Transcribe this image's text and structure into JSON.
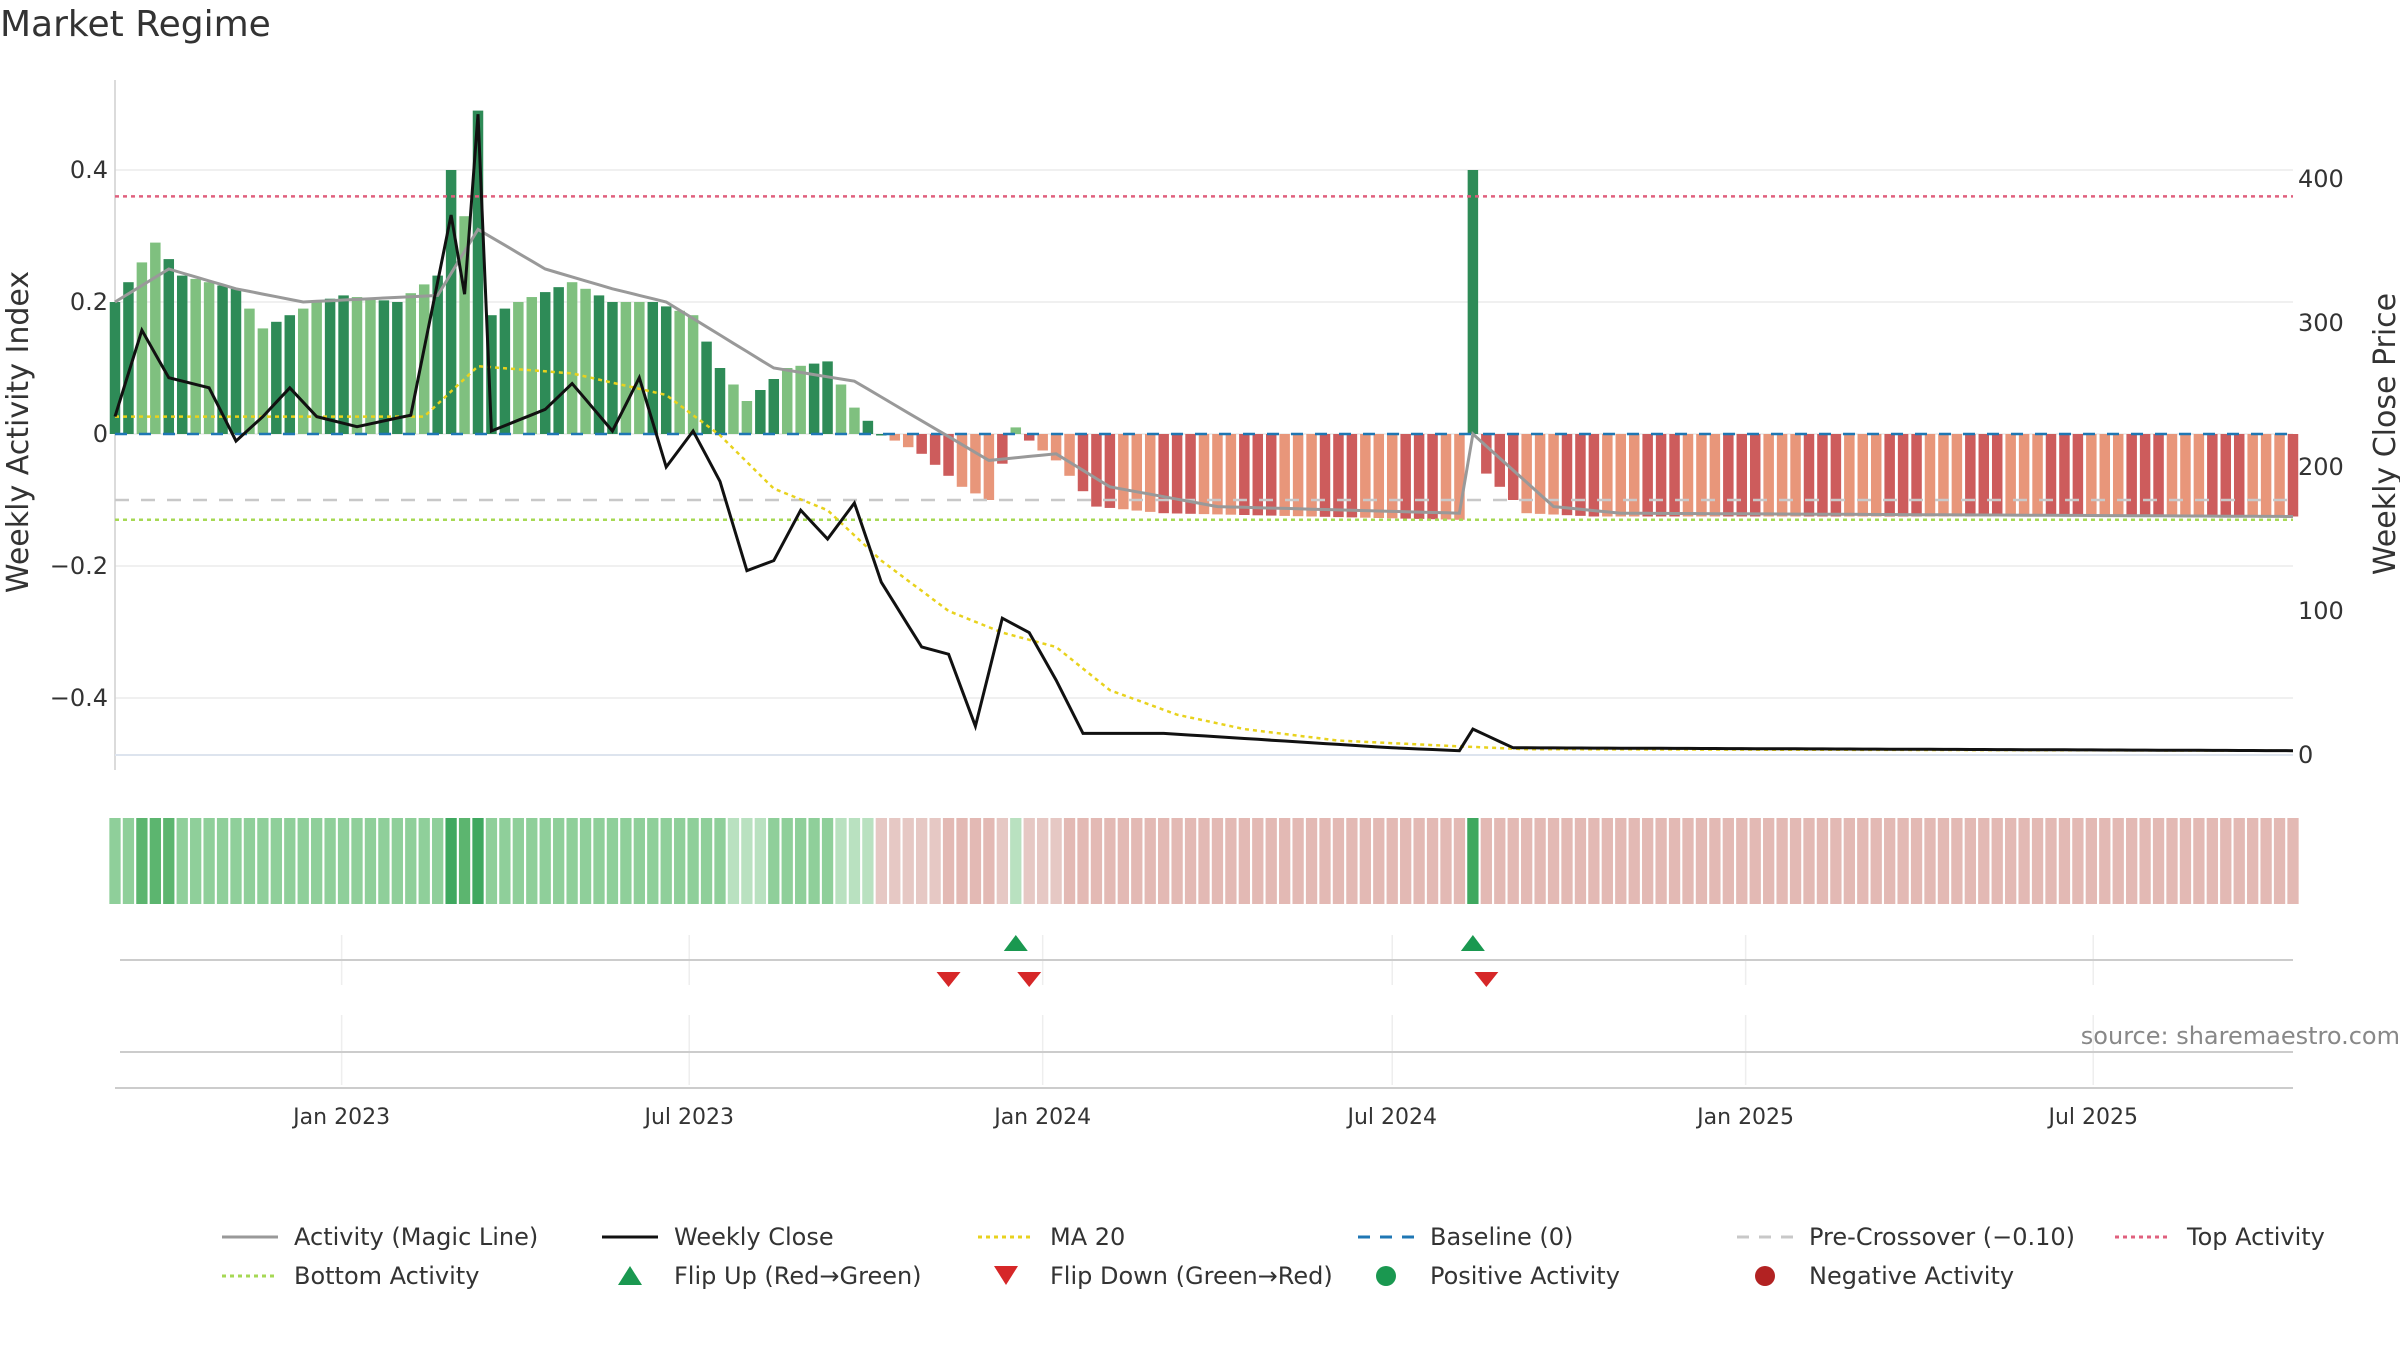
{
  "title": "Market Regime",
  "source": "source: sharemaestro.com",
  "colors": {
    "green_dark": "#2e8b57",
    "green_light": "#7fc07f",
    "red_dark": "#cd5c5c",
    "red_light": "#e8967a",
    "magic_line": "#999999",
    "close_line": "#111111",
    "ma20": "#e8d21d",
    "baseline": "#1f77b4",
    "pre_crossover": "#c8c8c8",
    "top_activity": "#e0607e",
    "bottom_activity": "#a6d854",
    "flip_up": "#1a9850",
    "flip_down": "#d62728",
    "positive_dot": "#1a9850",
    "negative_dot": "#b22222"
  },
  "chart_data": {
    "type": "bar",
    "title": "Market Regime",
    "ylabel_left": "Weekly Activity Index",
    "ylabel_right": "Weekly Close Price",
    "ylim_left": [
      -0.5,
      0.54
    ],
    "ylim_right": [
      0,
      480
    ],
    "yticks_left": [
      {
        "value": 0.4,
        "label": "0.4"
      },
      {
        "value": 0.2,
        "label": "0.2"
      },
      {
        "value": 0,
        "label": "0"
      },
      {
        "value": -0.2,
        "label": "−0.2"
      },
      {
        "value": -0.4,
        "label": "−0.4"
      }
    ],
    "yticks_right": [
      {
        "value": 400,
        "label": "400"
      },
      {
        "value": 300,
        "label": "300"
      },
      {
        "value": 200,
        "label": "200"
      },
      {
        "value": 100,
        "label": "100"
      },
      {
        "value": 0,
        "label": "0"
      }
    ],
    "x_start": "2022-09-05",
    "x_end": "2025-10-13",
    "xticks": [
      {
        "date": "2023-01-01",
        "label": "Jan 2023"
      },
      {
        "date": "2023-07-01",
        "label": "Jul 2023"
      },
      {
        "date": "2024-01-01",
        "label": "Jan 2024"
      },
      {
        "date": "2024-07-01",
        "label": "Jul 2024"
      },
      {
        "date": "2025-01-01",
        "label": "Jan 2025"
      },
      {
        "date": "2025-07-01",
        "label": "Jul 2025"
      }
    ],
    "reference_lines": {
      "top_activity": 0.36,
      "bottom_activity": -0.13,
      "pre_crossover": -0.1,
      "baseline": 0
    },
    "activity_keys": [
      [
        "2022-09-05",
        0.2
      ],
      [
        "2022-09-26",
        0.29
      ],
      [
        "2022-10-10",
        0.24
      ],
      [
        "2022-11-07",
        0.22
      ],
      [
        "2022-11-21",
        0.16
      ],
      [
        "2022-12-19",
        0.2
      ],
      [
        "2023-01-02",
        0.21
      ],
      [
        "2023-01-30",
        0.2
      ],
      [
        "2023-02-20",
        0.24
      ],
      [
        "2023-02-27",
        0.4
      ],
      [
        "2023-03-06",
        0.33
      ],
      [
        "2023-03-13",
        0.49
      ],
      [
        "2023-03-20",
        0.18
      ],
      [
        "2023-04-03",
        0.2
      ],
      [
        "2023-05-01",
        0.23
      ],
      [
        "2023-05-22",
        0.2
      ],
      [
        "2023-06-12",
        0.2
      ],
      [
        "2023-07-03",
        0.18
      ],
      [
        "2023-07-17",
        0.1
      ],
      [
        "2023-07-31",
        0.05
      ],
      [
        "2023-08-21",
        0.1
      ],
      [
        "2023-09-11",
        0.11
      ],
      [
        "2023-09-25",
        0.04
      ],
      [
        "2023-10-09",
        0.0
      ],
      [
        "2023-10-30",
        -0.03
      ],
      [
        "2023-11-20",
        -0.08
      ],
      [
        "2023-12-04",
        -0.1
      ],
      [
        "2023-12-18",
        0.01
      ],
      [
        "2023-12-25",
        -0.01
      ],
      [
        "2024-01-08",
        -0.04
      ],
      [
        "2024-01-29",
        -0.11
      ],
      [
        "2024-03-04",
        -0.12
      ],
      [
        "2024-08-05",
        -0.13
      ],
      [
        "2024-08-12",
        0.4
      ],
      [
        "2024-08-19",
        -0.06
      ],
      [
        "2024-09-09",
        -0.12
      ],
      [
        "2024-10-14",
        -0.125
      ],
      [
        "2025-10-13",
        -0.125
      ]
    ],
    "magic_keys": [
      [
        "2022-09-05",
        0.2
      ],
      [
        "2022-10-03",
        0.25
      ],
      [
        "2022-11-07",
        0.22
      ],
      [
        "2022-12-12",
        0.2
      ],
      [
        "2023-02-20",
        0.21
      ],
      [
        "2023-03-13",
        0.31
      ],
      [
        "2023-04-17",
        0.25
      ],
      [
        "2023-05-22",
        0.22
      ],
      [
        "2023-06-19",
        0.2
      ],
      [
        "2023-07-17",
        0.15
      ],
      [
        "2023-08-14",
        0.1
      ],
      [
        "2023-09-25",
        0.08
      ],
      [
        "2023-10-30",
        0.02
      ],
      [
        "2023-12-04",
        -0.04
      ],
      [
        "2024-01-08",
        -0.03
      ],
      [
        "2024-02-05",
        -0.08
      ],
      [
        "2024-04-01",
        -0.11
      ],
      [
        "2024-08-05",
        -0.12
      ],
      [
        "2024-08-12",
        0.0
      ],
      [
        "2024-09-23",
        -0.11
      ],
      [
        "2024-10-28",
        -0.12
      ],
      [
        "2025-10-13",
        -0.125
      ]
    ],
    "close_keys": [
      [
        "2022-09-05",
        235
      ],
      [
        "2022-09-19",
        295
      ],
      [
        "2022-10-03",
        262
      ],
      [
        "2022-10-24",
        255
      ],
      [
        "2022-11-07",
        218
      ],
      [
        "2022-11-21",
        235
      ],
      [
        "2022-12-05",
        255
      ],
      [
        "2022-12-19",
        235
      ],
      [
        "2023-01-09",
        228
      ],
      [
        "2023-02-06",
        236
      ],
      [
        "2023-02-27",
        375
      ],
      [
        "2023-03-06",
        320
      ],
      [
        "2023-03-13",
        445
      ],
      [
        "2023-03-20",
        225
      ],
      [
        "2023-04-17",
        240
      ],
      [
        "2023-05-01",
        258
      ],
      [
        "2023-05-22",
        225
      ],
      [
        "2023-06-05",
        262
      ],
      [
        "2023-06-19",
        200
      ],
      [
        "2023-07-03",
        225
      ],
      [
        "2023-07-17",
        190
      ],
      [
        "2023-07-31",
        128
      ],
      [
        "2023-08-14",
        135
      ],
      [
        "2023-08-28",
        170
      ],
      [
        "2023-09-11",
        150
      ],
      [
        "2023-09-25",
        175
      ],
      [
        "2023-10-09",
        120
      ],
      [
        "2023-10-30",
        75
      ],
      [
        "2023-11-13",
        70
      ],
      [
        "2023-11-27",
        20
      ],
      [
        "2023-12-11",
        95
      ],
      [
        "2023-12-25",
        85
      ],
      [
        "2024-01-08",
        52
      ],
      [
        "2024-01-22",
        15
      ],
      [
        "2024-03-04",
        15
      ],
      [
        "2024-07-01",
        5
      ],
      [
        "2024-08-05",
        3
      ],
      [
        "2024-08-12",
        18
      ],
      [
        "2024-09-02",
        5
      ],
      [
        "2025-10-13",
        3
      ]
    ],
    "ma20_keys": [
      [
        "2022-09-05",
        235
      ],
      [
        "2023-02-13",
        235
      ],
      [
        "2023-03-13",
        270
      ],
      [
        "2023-05-01",
        265
      ],
      [
        "2023-06-19",
        250
      ],
      [
        "2023-07-17",
        222
      ],
      [
        "2023-08-14",
        185
      ],
      [
        "2023-09-11",
        170
      ],
      [
        "2023-10-09",
        135
      ],
      [
        "2023-11-13",
        100
      ],
      [
        "2023-12-11",
        85
      ],
      [
        "2024-01-08",
        75
      ],
      [
        "2024-02-05",
        45
      ],
      [
        "2024-03-11",
        28
      ],
      [
        "2024-04-15",
        18
      ],
      [
        "2024-06-03",
        10
      ],
      [
        "2024-08-05",
        6
      ],
      [
        "2024-09-09",
        4
      ],
      [
        "2025-10-13",
        3
      ]
    ],
    "flip_up": [
      "2023-12-18",
      "2024-08-12"
    ],
    "flip_down": [
      "2023-11-13",
      "2023-12-25",
      "2024-08-19"
    ],
    "legend": [
      {
        "label": "Activity (Magic Line)",
        "kind": "line",
        "color": "#999999",
        "dash": ""
      },
      {
        "label": "Weekly Close",
        "kind": "line",
        "color": "#111111",
        "dash": ""
      },
      {
        "label": "MA 20",
        "kind": "line",
        "color": "#e8d21d",
        "dash": "4,4"
      },
      {
        "label": "Baseline (0)",
        "kind": "line",
        "color": "#1f77b4",
        "dash": "12,10"
      },
      {
        "label": "Pre-Crossover (−0.10)",
        "kind": "line",
        "color": "#c8c8c8",
        "dash": "12,10"
      },
      {
        "label": "Top Activity",
        "kind": "line",
        "color": "#e0607e",
        "dash": "4,4"
      },
      {
        "label": "Bottom Activity",
        "kind": "line",
        "color": "#a6d854",
        "dash": "4,4"
      },
      {
        "label": "Flip Up (Red→Green)",
        "kind": "tri-up",
        "color": "#1a9850"
      },
      {
        "label": "Flip Down (Green→Red)",
        "kind": "tri-down",
        "color": "#d62728"
      },
      {
        "label": "Positive Activity",
        "kind": "dot",
        "color": "#1a9850"
      },
      {
        "label": "Negative Activity",
        "kind": "dot",
        "color": "#b22222"
      }
    ]
  }
}
